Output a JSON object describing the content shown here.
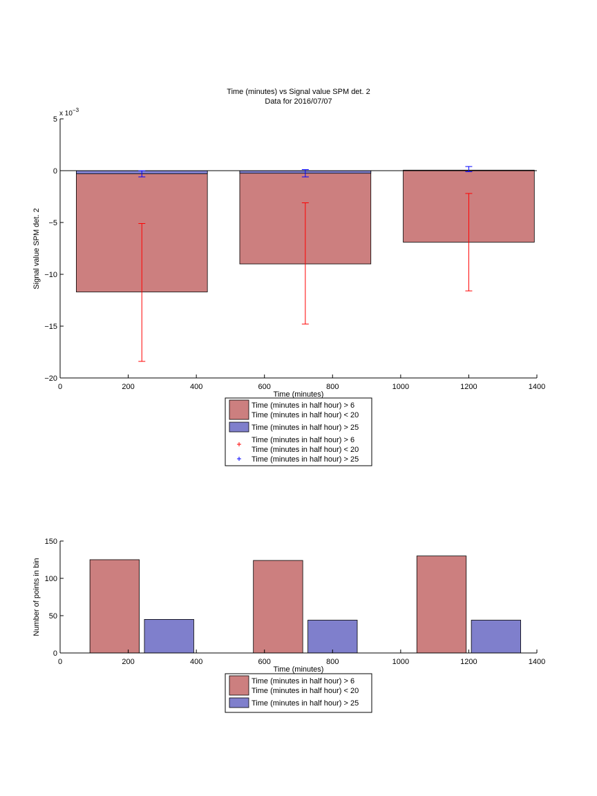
{
  "chart_data": [
    {
      "type": "bar",
      "title": "Time (minutes) vs Signal value SPM det. 2",
      "subtitle": "Data for 2016/07/07",
      "xlabel": "Time (minutes)",
      "ylabel": "Signal value SPM det. 2",
      "exponent_label": "x 10",
      "exponent_power": "−3",
      "xlim": [
        0,
        1400
      ],
      "ylim": [
        -20,
        5
      ],
      "xticks": [
        0,
        200,
        400,
        600,
        800,
        1000,
        1200,
        1400
      ],
      "yticks": [
        -20,
        -15,
        -10,
        -5,
        0,
        5
      ],
      "ytick_labels": [
        "−20",
        "−15",
        "−10",
        "−5",
        "0",
        "5"
      ],
      "x": [
        240,
        720,
        1200
      ],
      "bar_width": 385,
      "series": [
        {
          "name": "Time (minutes in half hour) > 6\nTime (minutes in half hour) < 20",
          "color": "#cc7f7f",
          "errcolor": "#ff0000",
          "values": [
            -11.7,
            -9.0,
            -6.9
          ],
          "err_low": [
            -18.4,
            -14.8,
            -11.6
          ],
          "err_high": [
            -5.1,
            -3.1,
            -2.2
          ]
        },
        {
          "name": "Time (minutes in half hour) > 25",
          "color": "#7f7fcc",
          "errcolor": "#0000ff",
          "values": [
            -0.3,
            -0.25,
            0.05
          ],
          "err_low": [
            -0.6,
            -0.6,
            -0.1
          ],
          "err_high": [
            0.0,
            0.1,
            0.4
          ]
        }
      ],
      "legend": {
        "placement": "below",
        "entries": [
          {
            "lines": [
              "Time (minutes in half hour) > 6",
              "Time (minutes in half hour) < 20"
            ],
            "kind": "patch",
            "color": "#cc7f7f"
          },
          {
            "lines": [
              "Time (minutes in half hour) > 25"
            ],
            "kind": "patch",
            "color": "#7f7fcc"
          },
          {
            "lines": [
              "Time (minutes in half hour) > 6",
              "Time (minutes in half hour) < 20"
            ],
            "kind": "marker",
            "color": "#ff0000"
          },
          {
            "lines": [
              "Time (minutes in half hour) > 25"
            ],
            "kind": "marker",
            "color": "#0000ff"
          }
        ]
      }
    },
    {
      "type": "bar",
      "xlabel": "Time (minutes)",
      "ylabel": "Number of points in bin",
      "xlim": [
        0,
        1400
      ],
      "ylim": [
        0,
        150
      ],
      "xticks": [
        0,
        200,
        400,
        600,
        800,
        1000,
        1200,
        1400
      ],
      "yticks": [
        0,
        50,
        100,
        150
      ],
      "x": [
        160,
        320,
        640,
        800,
        1120,
        1280
      ],
      "bar_width": 145,
      "values": [
        125,
        45,
        124,
        44,
        130,
        44
      ],
      "series_index": [
        0,
        1,
        0,
        1,
        0,
        1
      ],
      "series": [
        {
          "name": "Time (minutes in half hour) > 6\nTime (minutes in half hour) < 20",
          "color": "#cc7f7f"
        },
        {
          "name": "Time (minutes in half hour) > 25",
          "color": "#7f7fcc"
        }
      ],
      "legend": {
        "placement": "below",
        "entries": [
          {
            "lines": [
              "Time (minutes in half hour) > 6",
              "Time (minutes in half hour) < 20"
            ],
            "kind": "patch",
            "color": "#cc7f7f"
          },
          {
            "lines": [
              "Time (minutes in half hour) > 25"
            ],
            "kind": "patch",
            "color": "#7f7fcc"
          }
        ]
      }
    }
  ]
}
